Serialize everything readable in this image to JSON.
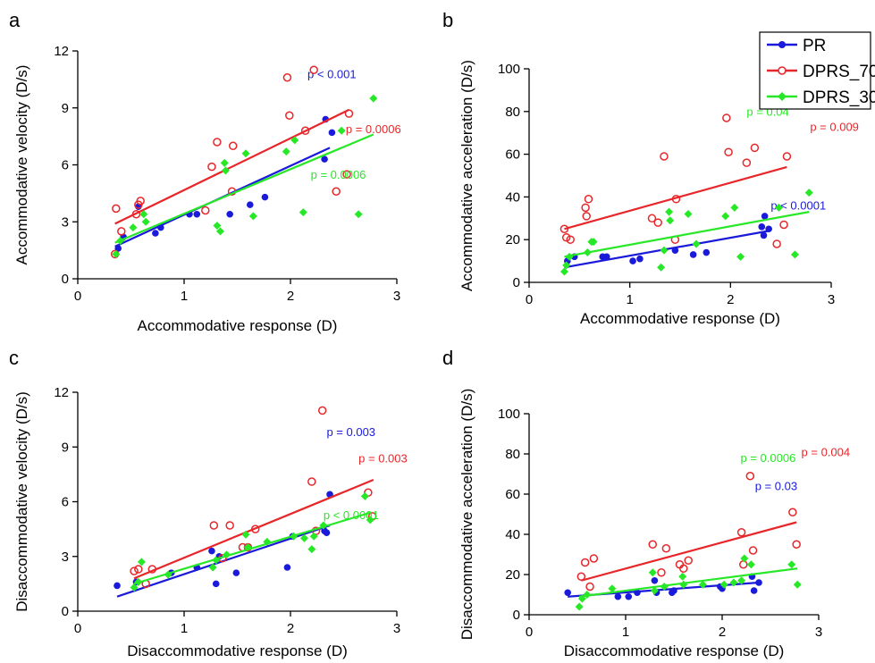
{
  "colors": {
    "PR": "#1a1adb",
    "DPRS_70": "#e8262a",
    "DPRS_30": "#27e827",
    "axis": "#000000"
  },
  "legend": {
    "position": "top-right",
    "entries": [
      "PR",
      "DPRS_70",
      "DPRS_30"
    ]
  },
  "chart_data": [
    {
      "panel_label": "a",
      "type": "scatter",
      "xlabel": "Accommodative response (D)",
      "ylabel": "Accommodative velocity (D/s)",
      "xlim": [
        0,
        3
      ],
      "ylim": [
        0,
        12
      ],
      "xticks": [
        "0",
        "1",
        "2",
        "3"
      ],
      "yticks": [
        "0",
        "3",
        "6",
        "9",
        "12"
      ],
      "grid": false,
      "series": [
        {
          "name": "PR",
          "points": [
            [
              0.38,
              1.6
            ],
            [
              0.43,
              2.2
            ],
            [
              0.57,
              3.8
            ],
            [
              0.73,
              2.4
            ],
            [
              0.78,
              2.7
            ],
            [
              1.05,
              3.4
            ],
            [
              1.12,
              3.4
            ],
            [
              1.43,
              3.4
            ],
            [
              1.62,
              3.9
            ],
            [
              1.76,
              4.3
            ],
            [
              2.33,
              8.4
            ],
            [
              2.32,
              6.3
            ],
            [
              2.39,
              7.7
            ]
          ],
          "fit": [
            [
              0.35,
              1.7
            ],
            [
              2.37,
              6.9
            ]
          ],
          "p_label": "p < 0.001"
        },
        {
          "name": "DPRS_70",
          "points": [
            [
              0.35,
              1.3
            ],
            [
              0.36,
              3.7
            ],
            [
              0.41,
              2.5
            ],
            [
              0.55,
              3.4
            ],
            [
              0.57,
              3.9
            ],
            [
              0.59,
              4.1
            ],
            [
              1.2,
              3.6
            ],
            [
              1.26,
              5.9
            ],
            [
              1.31,
              7.2
            ],
            [
              1.45,
              4.6
            ],
            [
              1.46,
              7.0
            ],
            [
              1.97,
              10.6
            ],
            [
              1.99,
              8.6
            ],
            [
              2.14,
              7.8
            ],
            [
              2.22,
              11.0
            ],
            [
              2.43,
              4.6
            ],
            [
              2.53,
              5.5
            ],
            [
              2.55,
              8.7
            ]
          ],
          "fit": [
            [
              0.35,
              2.9
            ],
            [
              2.55,
              8.9
            ]
          ],
          "p_label": "p = 0.0006"
        },
        {
          "name": "DPRS_30",
          "points": [
            [
              0.36,
              1.3
            ],
            [
              0.4,
              2.0
            ],
            [
              0.52,
              2.7
            ],
            [
              0.62,
              3.4
            ],
            [
              0.64,
              3.0
            ],
            [
              1.31,
              2.8
            ],
            [
              1.34,
              2.5
            ],
            [
              1.38,
              6.1
            ],
            [
              1.39,
              5.7
            ],
            [
              1.58,
              6.6
            ],
            [
              1.65,
              3.3
            ],
            [
              1.96,
              6.7
            ],
            [
              2.04,
              7.3
            ],
            [
              2.12,
              3.5
            ],
            [
              2.48,
              7.8
            ],
            [
              2.64,
              3.4
            ],
            [
              2.78,
              9.5
            ]
          ],
          "fit": [
            [
              0.35,
              1.9
            ],
            [
              2.78,
              7.6
            ]
          ],
          "p_label": "p = 0.0006"
        }
      ]
    },
    {
      "panel_label": "b",
      "type": "scatter",
      "xlabel": "Accommodative response (D)",
      "ylabel": "Accommodative acceleration (D/s)",
      "xlim": [
        0,
        3
      ],
      "ylim": [
        0,
        100
      ],
      "xticks": [
        "0",
        "1",
        "2",
        "3"
      ],
      "yticks": [
        "0",
        "20",
        "40",
        "60",
        "80",
        "100"
      ],
      "grid": false,
      "series": [
        {
          "name": "PR",
          "points": [
            [
              0.38,
              10
            ],
            [
              0.45,
              12
            ],
            [
              0.73,
              12
            ],
            [
              0.77,
              12
            ],
            [
              1.03,
              10
            ],
            [
              1.1,
              11
            ],
            [
              1.45,
              15
            ],
            [
              1.63,
              13
            ],
            [
              1.76,
              14
            ],
            [
              2.31,
              26
            ],
            [
              2.33,
              22
            ],
            [
              2.34,
              31
            ],
            [
              2.38,
              25
            ]
          ],
          "fit": [
            [
              0.35,
              7
            ],
            [
              2.37,
              24
            ]
          ],
          "p_label": "p < 0.0001"
        },
        {
          "name": "DPRS_70",
          "points": [
            [
              0.35,
              25
            ],
            [
              0.37,
              21
            ],
            [
              0.41,
              20
            ],
            [
              0.56,
              35
            ],
            [
              0.57,
              31
            ],
            [
              0.59,
              39
            ],
            [
              1.22,
              30
            ],
            [
              1.28,
              28
            ],
            [
              1.34,
              59
            ],
            [
              1.45,
              20
            ],
            [
              1.46,
              39
            ],
            [
              1.96,
              77
            ],
            [
              1.98,
              61
            ],
            [
              2.16,
              56
            ],
            [
              2.24,
              63
            ],
            [
              2.46,
              18
            ],
            [
              2.53,
              27
            ],
            [
              2.56,
              59
            ]
          ],
          "fit": [
            [
              0.35,
              25
            ],
            [
              2.56,
              54
            ]
          ],
          "p_label": "p = 0.009"
        },
        {
          "name": "DPRS_30",
          "points": [
            [
              0.35,
              5
            ],
            [
              0.37,
              8
            ],
            [
              0.4,
              12
            ],
            [
              0.58,
              14
            ],
            [
              0.62,
              19
            ],
            [
              0.64,
              19
            ],
            [
              1.31,
              7
            ],
            [
              1.34,
              15
            ],
            [
              1.39,
              33
            ],
            [
              1.4,
              29
            ],
            [
              1.58,
              32
            ],
            [
              1.66,
              18
            ],
            [
              1.95,
              31
            ],
            [
              2.04,
              35
            ],
            [
              2.1,
              12
            ],
            [
              2.48,
              35
            ],
            [
              2.64,
              13
            ],
            [
              2.78,
              42
            ]
          ],
          "fit": [
            [
              0.35,
              12
            ],
            [
              2.78,
              33
            ]
          ],
          "p_label": "p = 0.04"
        }
      ]
    },
    {
      "panel_label": "c",
      "type": "scatter",
      "xlabel": "Disaccommodative response (D)",
      "ylabel": "Disaccommodative velocity (D/s)",
      "xlim": [
        0,
        3
      ],
      "ylim": [
        0,
        12
      ],
      "xticks": [
        "0",
        "1",
        "2",
        "3"
      ],
      "yticks": [
        "0",
        "3",
        "6",
        "9",
        "12"
      ],
      "grid": false,
      "series": [
        {
          "name": "PR",
          "points": [
            [
              0.37,
              1.4
            ],
            [
              0.55,
              1.6
            ],
            [
              0.88,
              2.1
            ],
            [
              1.12,
              2.4
            ],
            [
              1.26,
              3.3
            ],
            [
              1.3,
              1.5
            ],
            [
              1.33,
              3.0
            ],
            [
              1.49,
              2.1
            ],
            [
              1.97,
              2.4
            ],
            [
              2.02,
              4.1
            ],
            [
              2.32,
              4.4
            ],
            [
              2.34,
              4.3
            ],
            [
              2.37,
              6.4
            ]
          ],
          "fit": [
            [
              0.37,
              0.8
            ],
            [
              2.37,
              4.7
            ]
          ],
          "p_label": "p = 0.003"
        },
        {
          "name": "DPRS_70",
          "points": [
            [
              0.53,
              2.2
            ],
            [
              0.57,
              2.3
            ],
            [
              0.64,
              1.5
            ],
            [
              0.7,
              2.3
            ],
            [
              1.28,
              4.7
            ],
            [
              1.36,
              2.9
            ],
            [
              1.43,
              4.7
            ],
            [
              1.55,
              3.5
            ],
            [
              1.6,
              3.5
            ],
            [
              1.67,
              4.5
            ],
            [
              2.2,
              7.1
            ],
            [
              2.24,
              4.4
            ],
            [
              2.3,
              11.0
            ],
            [
              2.73,
              6.5
            ],
            [
              2.77,
              5.2
            ]
          ],
          "fit": [
            [
              0.53,
              1.8
            ],
            [
              2.78,
              7.2
            ]
          ],
          "p_label": "p = 0.003"
        },
        {
          "name": "DPRS_30",
          "points": [
            [
              0.53,
              1.3
            ],
            [
              0.57,
              1.6
            ],
            [
              0.6,
              2.7
            ],
            [
              0.85,
              2.0
            ],
            [
              1.27,
              2.4
            ],
            [
              1.3,
              2.8
            ],
            [
              1.4,
              3.1
            ],
            [
              1.58,
              4.2
            ],
            [
              1.6,
              3.5
            ],
            [
              1.78,
              3.8
            ],
            [
              2.03,
              4.1
            ],
            [
              2.13,
              4.0
            ],
            [
              2.2,
              3.4
            ],
            [
              2.22,
              4.1
            ],
            [
              2.31,
              4.7
            ],
            [
              2.7,
              6.3
            ],
            [
              2.75,
              5.0
            ]
          ],
          "fit": [
            [
              0.53,
              1.5
            ],
            [
              2.75,
              5.4
            ]
          ],
          "p_label": "p < 0.0001"
        }
      ]
    },
    {
      "panel_label": "d",
      "type": "scatter",
      "xlabel": "Disaccommodative response (D)",
      "ylabel": "Disaccommodative acceleration (D/s)",
      "xlim": [
        0,
        3
      ],
      "ylim": [
        0,
        100
      ],
      "xticks": [
        "0",
        "1",
        "2",
        "3"
      ],
      "yticks": [
        "0",
        "20",
        "40",
        "60",
        "80",
        "100"
      ],
      "grid": false,
      "series": [
        {
          "name": "PR",
          "points": [
            [
              0.4,
              11
            ],
            [
              0.92,
              9
            ],
            [
              1.03,
              9
            ],
            [
              1.12,
              11
            ],
            [
              1.3,
              17
            ],
            [
              1.32,
              11
            ],
            [
              1.48,
              11
            ],
            [
              1.5,
              12
            ],
            [
              1.98,
              14
            ],
            [
              2.0,
              13
            ],
            [
              2.31,
              19
            ],
            [
              2.33,
              12
            ],
            [
              2.38,
              16
            ]
          ],
          "fit": [
            [
              0.4,
              9
            ],
            [
              2.38,
              16
            ]
          ],
          "p_label": "p = 0.03"
        },
        {
          "name": "DPRS_70",
          "points": [
            [
              0.54,
              19
            ],
            [
              0.58,
              26
            ],
            [
              0.63,
              14
            ],
            [
              0.67,
              28
            ],
            [
              1.28,
              35
            ],
            [
              1.37,
              21
            ],
            [
              1.42,
              33
            ],
            [
              1.56,
              25
            ],
            [
              1.6,
              23
            ],
            [
              1.65,
              27
            ],
            [
              2.2,
              41
            ],
            [
              2.22,
              25
            ],
            [
              2.29,
              69
            ],
            [
              2.32,
              32
            ],
            [
              2.73,
              51
            ],
            [
              2.77,
              35
            ]
          ],
          "fit": [
            [
              0.54,
              17
            ],
            [
              2.77,
              46
            ]
          ],
          "p_label": "p = 0.004"
        },
        {
          "name": "DPRS_30",
          "points": [
            [
              0.52,
              4
            ],
            [
              0.55,
              8
            ],
            [
              0.6,
              10
            ],
            [
              0.86,
              13
            ],
            [
              1.28,
              21
            ],
            [
              1.3,
              12
            ],
            [
              1.4,
              14
            ],
            [
              1.59,
              19
            ],
            [
              1.6,
              15
            ],
            [
              1.8,
              15
            ],
            [
              2.02,
              15
            ],
            [
              2.12,
              16
            ],
            [
              2.2,
              17
            ],
            [
              2.23,
              28
            ],
            [
              2.3,
              25
            ],
            [
              2.72,
              25
            ],
            [
              2.78,
              15
            ]
          ],
          "fit": [
            [
              0.52,
              9
            ],
            [
              2.78,
              23
            ]
          ],
          "p_label": "p = 0.0006"
        }
      ]
    }
  ]
}
